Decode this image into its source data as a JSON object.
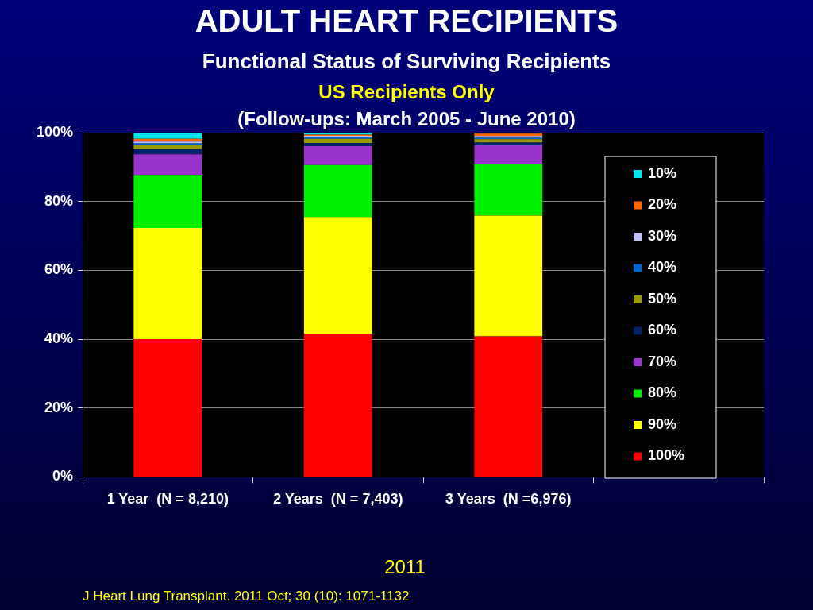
{
  "chart_data": {
    "type": "bar",
    "title": "ADULT HEART RECIPIENTS",
    "subtitle": "Functional Status of Surviving Recipients",
    "annotations": [
      "US Recipients Only",
      "(Follow-ups: March 2005 - June 2010)",
      "2011",
      "J Heart Lung Transplant. 2011 Oct; 30 (10): 1071-1132"
    ],
    "categories": [
      "1 Year  (N = 8,210)",
      "2 Years  (N = 7,403)",
      "3 Years  (N =6,976)",
      null
    ],
    "stacked": true,
    "ylim": [
      0,
      100
    ],
    "yticks": [
      {
        "value": 0,
        "label": "0%"
      },
      {
        "value": 20,
        "label": "20%"
      },
      {
        "value": 40,
        "label": "40%"
      },
      {
        "value": 60,
        "label": "60%"
      },
      {
        "value": 80,
        "label": "80%"
      },
      {
        "value": 100,
        "label": "100%"
      }
    ],
    "grid": "y",
    "legend": "right",
    "series": [
      {
        "name": "100%",
        "color": "#ff0000",
        "values": [
          40.0,
          41.5,
          40.8,
          null
        ]
      },
      {
        "name": "90%",
        "color": "#ffff00",
        "values": [
          32.3,
          34.0,
          35.1,
          null
        ]
      },
      {
        "name": "80%",
        "color": "#00ee00",
        "values": [
          15.4,
          15.1,
          14.9,
          null
        ]
      },
      {
        "name": "70%",
        "color": "#9933cc",
        "values": [
          6.0,
          5.5,
          5.5,
          null
        ]
      },
      {
        "name": "60%",
        "color": "#002266",
        "values": [
          1.5,
          0.9,
          0.8,
          null
        ]
      },
      {
        "name": "50%",
        "color": "#999900",
        "values": [
          1.2,
          1.2,
          1.0,
          null
        ]
      },
      {
        "name": "40%",
        "color": "#0066cc",
        "values": [
          0.5,
          0.4,
          0.4,
          null
        ]
      },
      {
        "name": "30%",
        "color": "#c0c0ff",
        "values": [
          0.5,
          0.5,
          0.5,
          null
        ]
      },
      {
        "name": "20%",
        "color": "#ff6600",
        "values": [
          0.8,
          0.3,
          0.7,
          null
        ]
      },
      {
        "name": "10%",
        "color": "#00e5ee",
        "values": [
          1.9,
          0.6,
          0.3,
          null
        ]
      }
    ]
  }
}
